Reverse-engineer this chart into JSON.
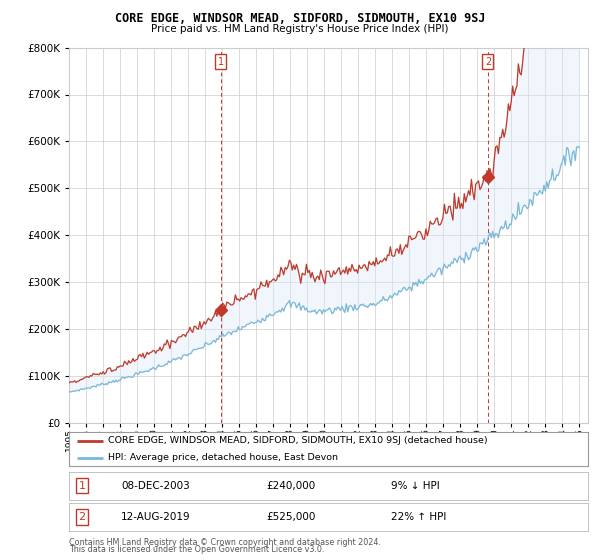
{
  "title": "CORE EDGE, WINDSOR MEAD, SIDFORD, SIDMOUTH, EX10 9SJ",
  "subtitle": "Price paid vs. HM Land Registry's House Price Index (HPI)",
  "legend_line1": "CORE EDGE, WINDSOR MEAD, SIDFORD, SIDMOUTH, EX10 9SJ (detached house)",
  "legend_line2": "HPI: Average price, detached house, East Devon",
  "sale1_date": "08-DEC-2003",
  "sale1_price": 240000,
  "sale1_label": "9% ↓ HPI",
  "sale2_date": "12-AUG-2019",
  "sale2_price": 525000,
  "sale2_label": "22% ↑ HPI",
  "footer1": "Contains HM Land Registry data © Crown copyright and database right 2024.",
  "footer2": "This data is licensed under the Open Government Licence v3.0.",
  "hpi_color": "#7ab8d9",
  "property_color": "#c0392b",
  "vline_color": "#c0392b",
  "fill_color": "#daeaf5",
  "background_color": "#ffffff",
  "grid_color": "#cccccc",
  "ylim": [
    0,
    800000
  ],
  "xlim_start": 1995.0,
  "xlim_end": 2025.5,
  "sale1_x": 2003.92,
  "sale2_x": 2019.62
}
